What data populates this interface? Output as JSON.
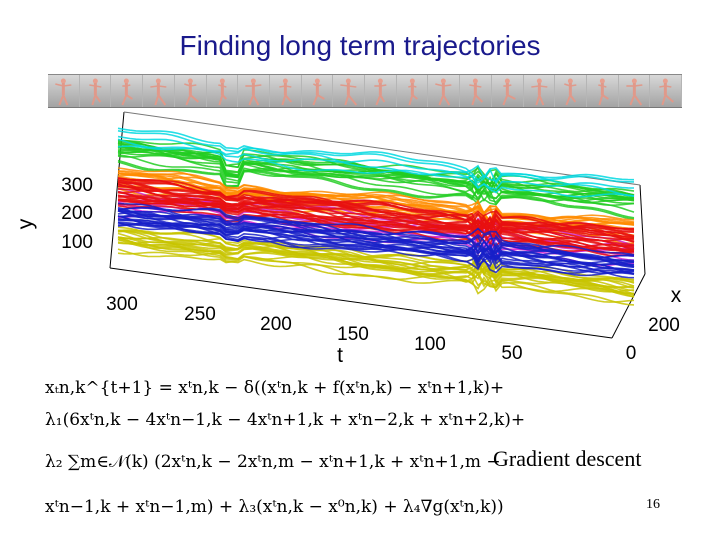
{
  "slide": {
    "title": "Finding long term trajectories",
    "caption": "Gradient descent",
    "page_number": "16"
  },
  "filmstrip": {
    "frame_count": 20
  },
  "chart_data": {
    "type": "3d-trajectories",
    "title": "",
    "xlabel": "x",
    "ylabel": "y",
    "tlabel": "t",
    "t_ticks": [
      "300",
      "250",
      "200",
      "150",
      "100",
      "50",
      "0"
    ],
    "y_ticks": [
      "300",
      "200",
      "100"
    ],
    "x_ticks": [
      "200"
    ],
    "series": [
      {
        "name": "cyan",
        "color": "#00d8e0"
      },
      {
        "name": "green",
        "color": "#22cc22"
      },
      {
        "name": "orange",
        "color": "#ff8c00"
      },
      {
        "name": "red",
        "color": "#e81010"
      },
      {
        "name": "magenta",
        "color": "#d020d0"
      },
      {
        "name": "blue",
        "color": "#1820c8"
      },
      {
        "name": "yellow",
        "color": "#c8c400"
      }
    ]
  },
  "equations": {
    "line1": "xₜn,k^{t+1} = xᵗn,k − δ((xᵗn,k + f(xᵗn,k) − xᵗn+1,k)+",
    "line2": "λ₁(6xᵗn,k − 4xᵗn−1,k − 4xᵗn+1,k + xᵗn−2,k + xᵗn+2,k)+",
    "line3": "λ₂ ∑m∈𝒩(k) (2xᵗn,k − 2xᵗn,m − xᵗn+1,k + xᵗn+1,m −",
    "line4": "xᵗn−1,k + xᵗn−1,m) + λ₃(xᵗn,k − x⁰n,k) + λ₄∇g(xᵗn,k))"
  }
}
